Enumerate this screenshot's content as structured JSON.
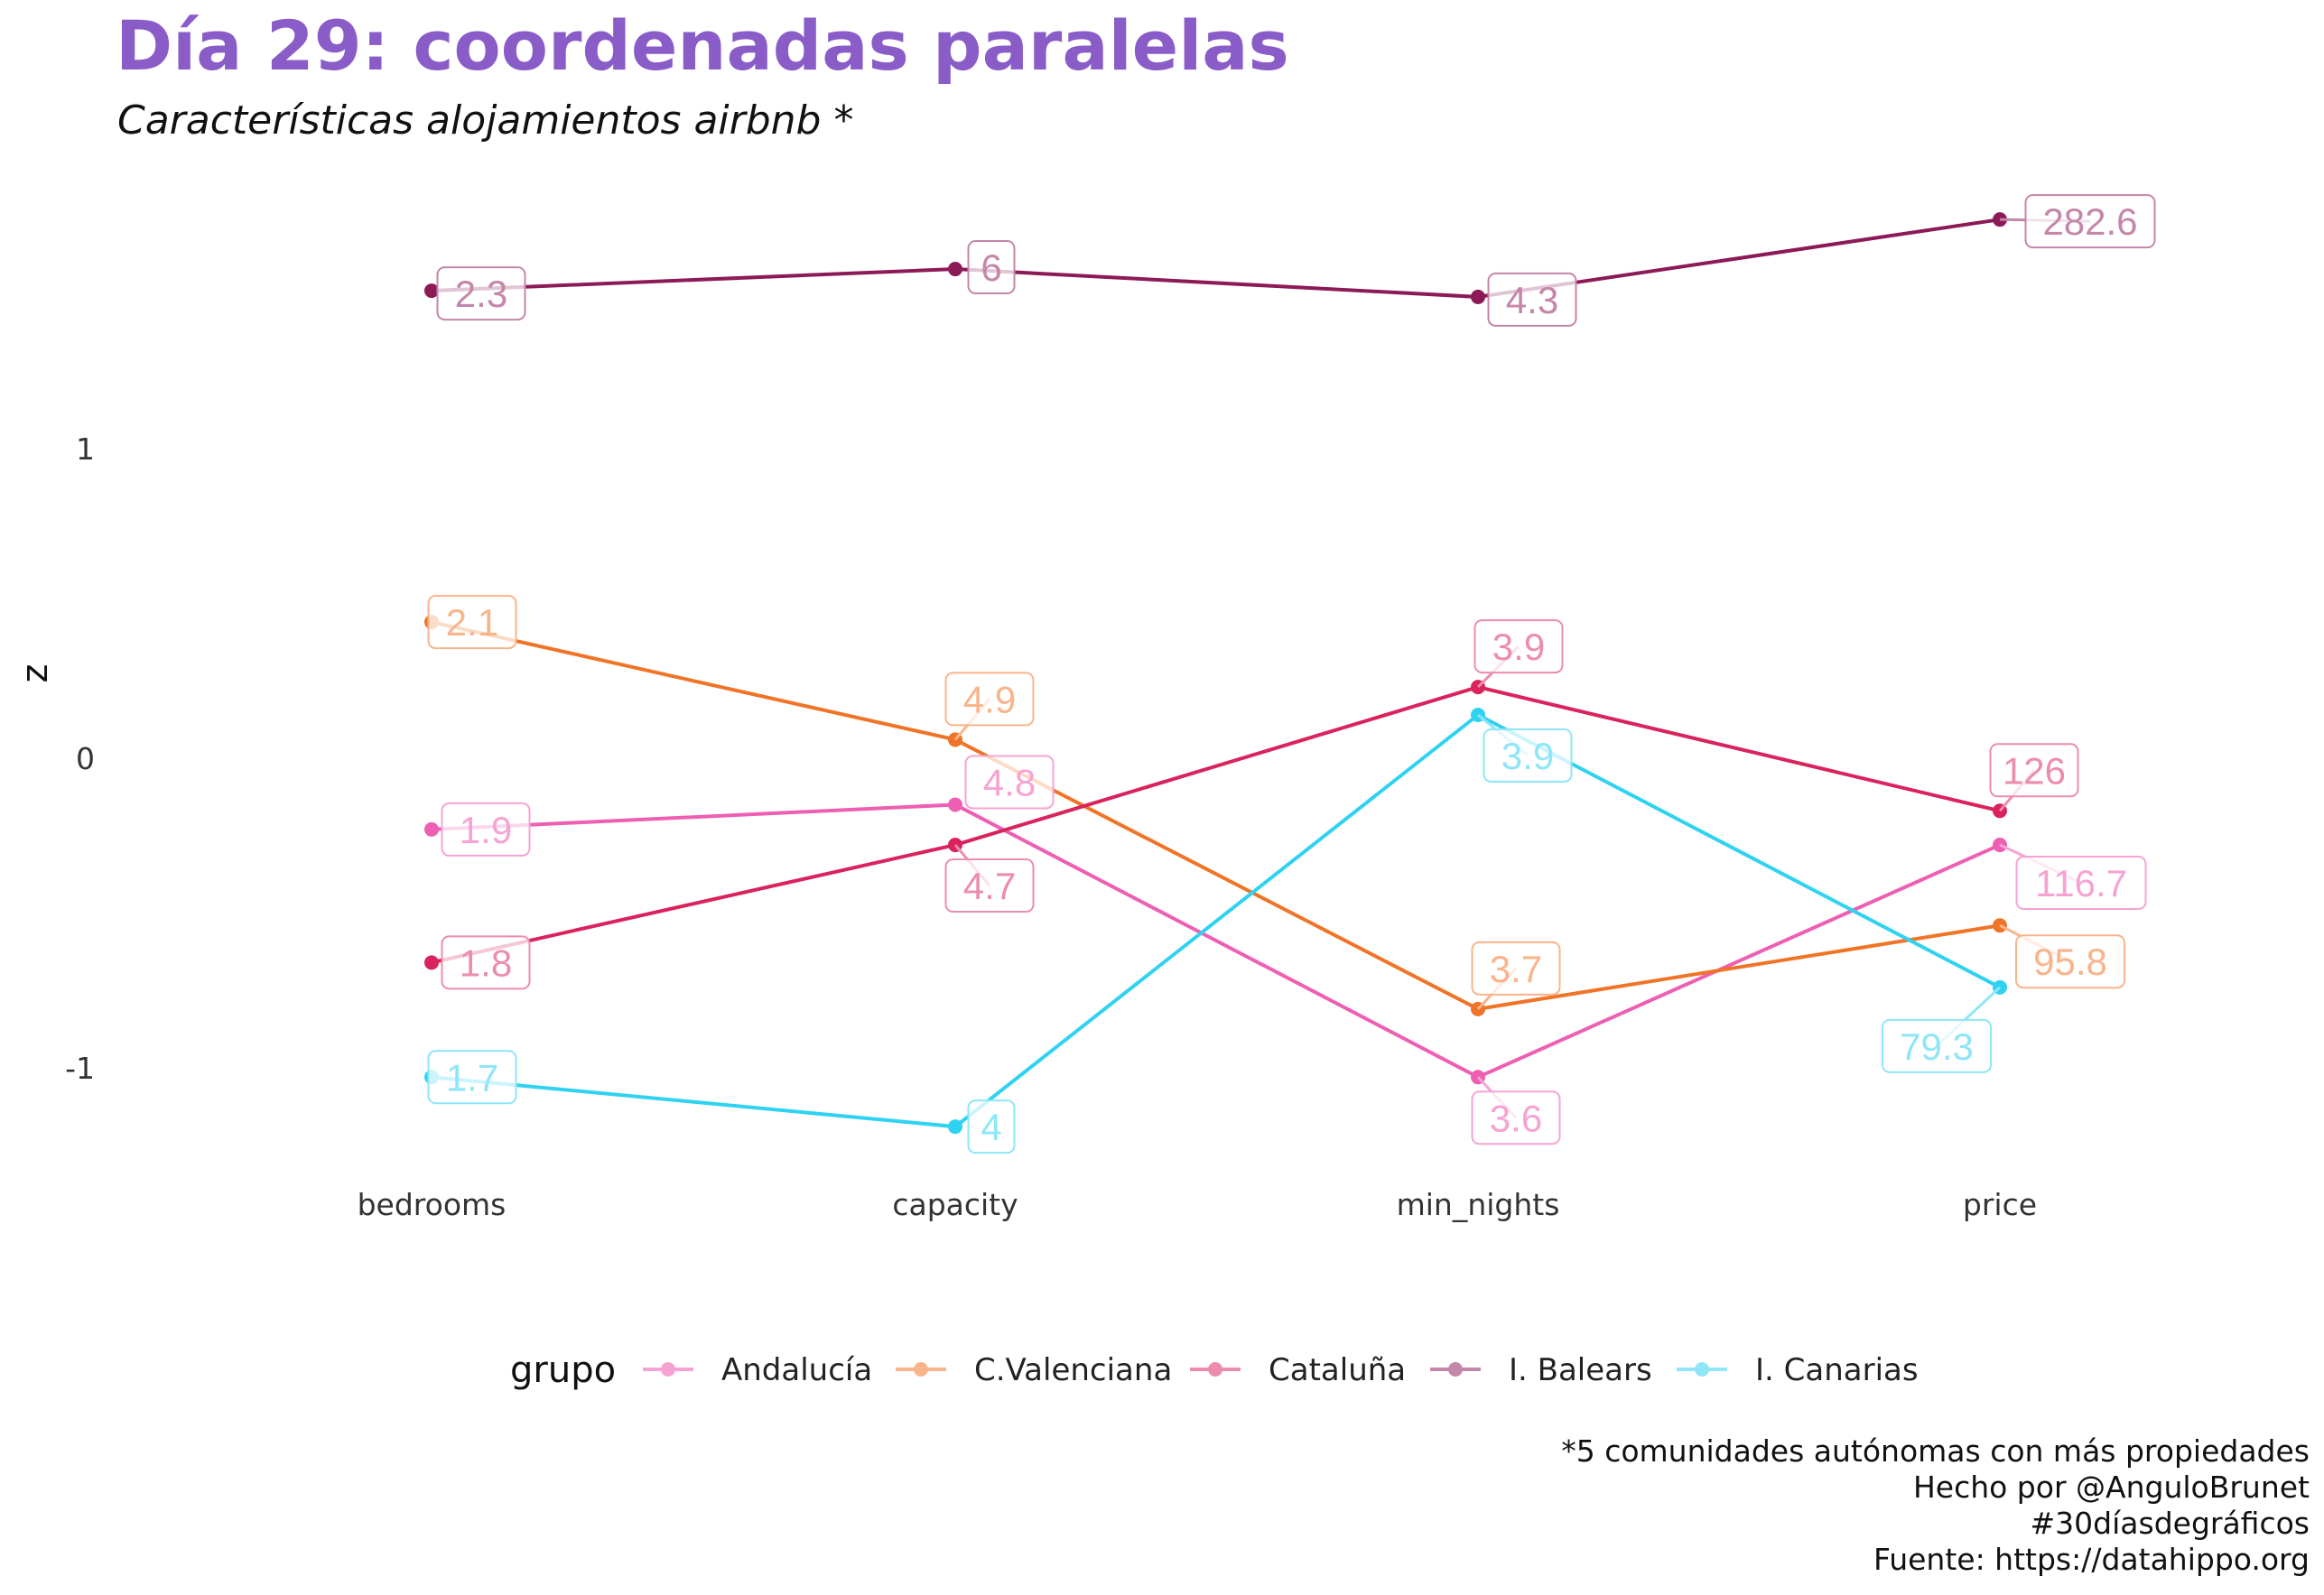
{
  "title": "Día 29: coordenadas paralelas",
  "subtitle": "Características alojamientos airbnb *",
  "chart_data": {
    "type": "line",
    "x": [
      "bedrooms",
      "capacity",
      "min_nights",
      "price"
    ],
    "ylabel": "z",
    "ylim": [
      -1.38,
      1.9
    ],
    "yticks": [
      -1,
      0,
      1
    ],
    "ytick_labels": [
      "-1",
      "0",
      "1"
    ],
    "grid": false,
    "legend": {
      "title": "grupo",
      "position": "bottom"
    },
    "series": [
      {
        "name": "Andalucía",
        "color": "#ee5fb3",
        "label_color": "#f6a3d3",
        "values": [
          -0.23,
          -0.15,
          -1.03,
          -0.28
        ],
        "labels": [
          "1.9",
          "4.8",
          "3.6",
          "116.7"
        ]
      },
      {
        "name": "C.Valenciana",
        "color": "#f07427",
        "label_color": "#f9b48a",
        "values": [
          0.44,
          0.06,
          -0.81,
          -0.54
        ],
        "labels": [
          "2.1",
          "4.9",
          "3.7",
          "95.8"
        ]
      },
      {
        "name": "Cataluña",
        "color": "#d9235c",
        "label_color": "#ec8cae",
        "values": [
          -0.66,
          -0.28,
          0.23,
          -0.17
        ],
        "labels": [
          "1.8",
          "4.7",
          "3.9",
          "126"
        ]
      },
      {
        "name": "I. Balears",
        "color": "#8c1a57",
        "label_color": "#c486a9",
        "values": [
          1.51,
          1.58,
          1.49,
          1.74
        ],
        "labels": [
          "2.3",
          "6",
          "4.3",
          "282.6"
        ]
      },
      {
        "name": "I. Canarias",
        "color": "#30d2f2",
        "label_color": "#8ee6f8",
        "values": [
          -1.03,
          -1.19,
          0.14,
          -0.74
        ],
        "labels": [
          "1.7",
          "4",
          "3.9",
          "79.3"
        ]
      }
    ]
  },
  "caption": [
    "*5 comunidades autónomas con más propiedades",
    "Hecho por @AnguloBrunet ",
    "#30díasdegráficos",
    "Fuente: https://datahippo.org"
  ]
}
